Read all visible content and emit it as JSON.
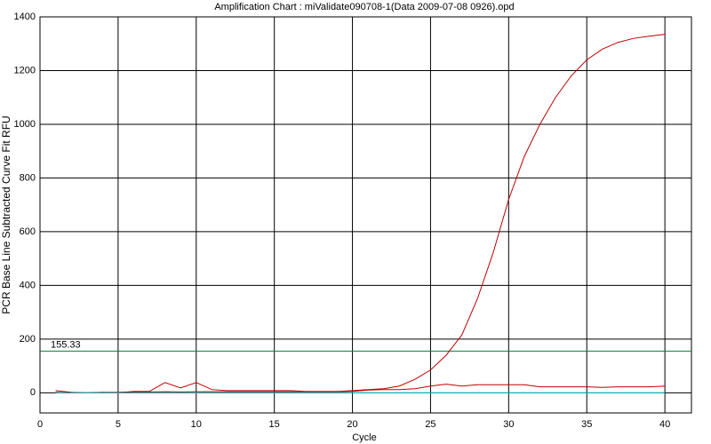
{
  "chart_data": {
    "type": "line",
    "title": "Amplification Chart : miValidate090708-1(Data 2009-07-08 0926).opd",
    "x_label": "Cycle",
    "y_label": "PCR Base Line Subtracted Curve Fit RFU",
    "x": [
      1,
      2,
      3,
      4,
      5,
      6,
      7,
      8,
      9,
      10,
      11,
      12,
      13,
      14,
      15,
      16,
      17,
      18,
      19,
      20,
      21,
      22,
      23,
      24,
      25,
      26,
      27,
      28,
      29,
      30,
      31,
      32,
      33,
      34,
      35,
      36,
      37,
      38,
      39,
      40
    ],
    "series": [
      {
        "color": "#c00000",
        "values": [
          8,
          2,
          0,
          2,
          0,
          5,
          5,
          38,
          18,
          38,
          12,
          8,
          8,
          8,
          8,
          8,
          5,
          5,
          5,
          8,
          12,
          15,
          25,
          50,
          85,
          140,
          215,
          350,
          520,
          720,
          880,
          1000,
          1100,
          1180,
          1240,
          1280,
          1305,
          1320,
          1328,
          1335
        ]
      },
      {
        "color": "#c00000",
        "values": [
          2,
          0,
          0,
          1,
          2,
          3,
          3,
          4,
          3,
          4,
          4,
          4,
          4,
          4,
          4,
          4,
          4,
          4,
          4,
          5,
          10,
          12,
          12,
          15,
          25,
          32,
          25,
          30,
          30,
          30,
          30,
          22,
          22,
          22,
          22,
          20,
          22,
          22,
          22,
          25
        ]
      },
      {
        "color": "#00c8c8",
        "values": [
          0,
          0,
          0,
          0,
          0,
          0,
          0,
          0,
          0,
          0,
          0,
          0,
          0,
          0,
          0,
          0,
          0,
          0,
          0,
          0,
          0,
          0,
          0,
          0,
          0,
          0,
          0,
          0,
          0,
          0,
          0,
          0,
          0,
          0,
          0,
          0,
          0,
          0,
          0,
          0
        ]
      }
    ],
    "threshold": 155.33,
    "threshold_color": "#008040",
    "xlim": [
      0,
      41.7
    ],
    "xticks": [
      0,
      5,
      10,
      15,
      20,
      25,
      30,
      35,
      40
    ],
    "ylim": [
      -75,
      1400
    ],
    "yticks": [
      0,
      200,
      400,
      600,
      800,
      1000,
      1200,
      1400
    ],
    "grid": true
  }
}
